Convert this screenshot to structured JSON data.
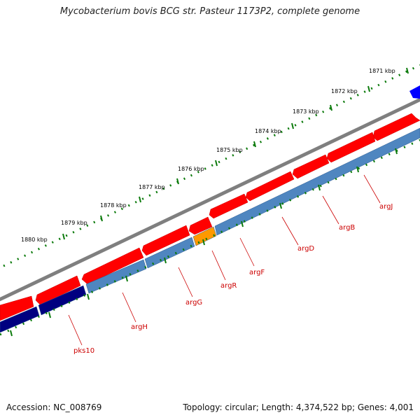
{
  "title": "Mycobacterium bovis BCG str. Pasteur 1173P2, complete genome",
  "footer": {
    "accession": "Accession: NC_008769",
    "stats": "Topology: circular; Length: 4,374,522 bp; Genes: 4,001"
  },
  "colors": {
    "forward_cds": "#ff0000",
    "reverse_cds": "#4f86c0",
    "reverse_cds_pks": "#000080",
    "argR_highlight": "#ff9900",
    "top_gene": "#0000ff",
    "backbone": "#808080",
    "ticks": "#0b7a0b",
    "gene_label": "#cc0000"
  },
  "kbp_ticks": [
    {
      "label": "1871 kbp"
    },
    {
      "label": "1872 kbp"
    },
    {
      "label": "1873 kbp"
    },
    {
      "label": "1874 kbp"
    },
    {
      "label": "1875 kbp"
    },
    {
      "label": "1876 kbp"
    },
    {
      "label": "1877 kbp"
    },
    {
      "label": "1878 kbp"
    },
    {
      "label": "1879 kbp"
    },
    {
      "label": "1880 kbp"
    }
  ],
  "genes": [
    {
      "name": "argJ"
    },
    {
      "name": "argB"
    },
    {
      "name": "argD"
    },
    {
      "name": "argF"
    },
    {
      "name": "argR"
    },
    {
      "name": "argG"
    },
    {
      "name": "argH"
    },
    {
      "name": "pks10"
    }
  ]
}
